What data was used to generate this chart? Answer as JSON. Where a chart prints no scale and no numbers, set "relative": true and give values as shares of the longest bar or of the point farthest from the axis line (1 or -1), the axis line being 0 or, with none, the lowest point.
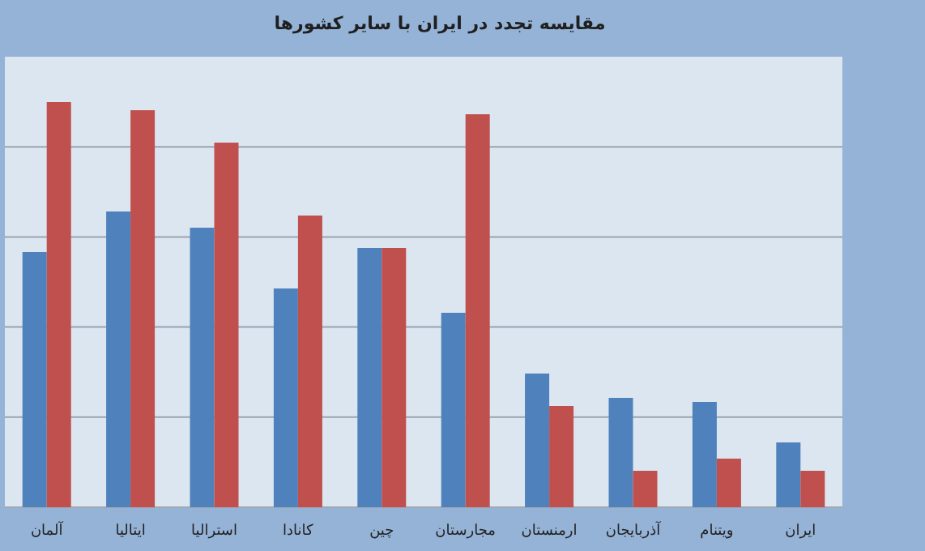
{
  "chart_data": {
    "type": "bar",
    "title": "مقایسه تجدد در ایران با سایر کشورها",
    "categories": [
      "آلمان",
      "ایتالیا",
      "استرالیا",
      "کانادا",
      "چین",
      "مجارستان",
      "ارمنستان",
      "آذربایجان",
      "ویتنام",
      "ایران"
    ],
    "relative": true,
    "grid": "y",
    "series": [
      {
        "color": "#4f81bd",
        "values": [
          0.63,
          0.73,
          0.69,
          0.54,
          0.64,
          0.48,
          0.33,
          0.27,
          0.26,
          0.16
        ]
      },
      {
        "color": "#c0504d",
        "values": [
          1,
          0.98,
          0.9,
          0.72,
          0.64,
          0.97,
          0.25,
          0.09,
          0.12,
          0.09
        ]
      }
    ]
  }
}
